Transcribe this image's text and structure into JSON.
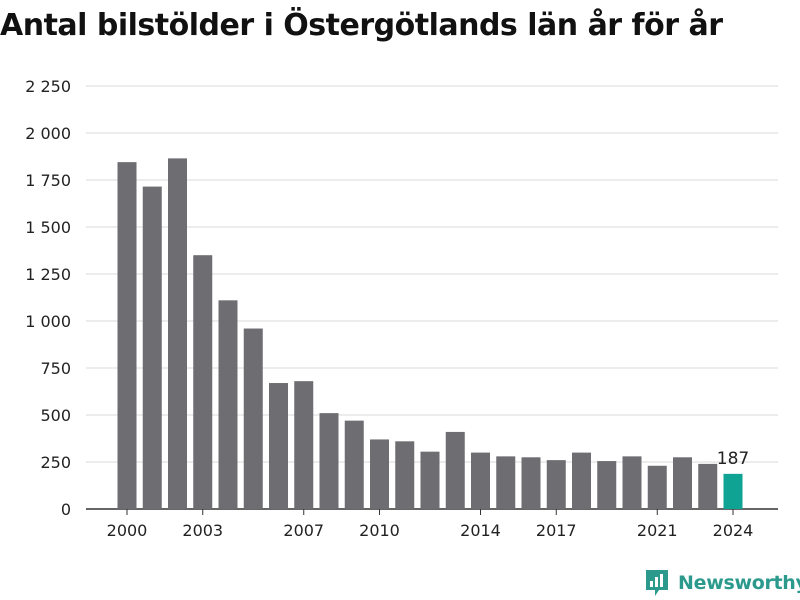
{
  "chart_data": {
    "type": "bar",
    "title": "Antal bilstölder i Östergötlands län år för år",
    "categories": [
      2000,
      2001,
      2002,
      2003,
      2004,
      2005,
      2006,
      2007,
      2008,
      2009,
      2010,
      2011,
      2012,
      2013,
      2014,
      2015,
      2016,
      2017,
      2018,
      2019,
      2020,
      2021,
      2022,
      2023,
      2024
    ],
    "values": [
      1845,
      1715,
      1865,
      1350,
      1110,
      960,
      670,
      680,
      510,
      470,
      370,
      360,
      305,
      410,
      300,
      280,
      275,
      260,
      300,
      255,
      280,
      230,
      275,
      240,
      187
    ],
    "x_tick_labels": [
      "2000",
      "2003",
      "2007",
      "2010",
      "2014",
      "2017",
      "2021",
      "2024"
    ],
    "y_ticks": [
      0,
      250,
      500,
      750,
      1000,
      1250,
      1500,
      1750,
      2000,
      2250
    ],
    "y_tick_labels": [
      "0",
      "250",
      "500",
      "750",
      "1 000",
      "1 250",
      "1 500",
      "1 750",
      "2 000",
      "2 250"
    ],
    "ylim": [
      0,
      2250
    ],
    "grid": true,
    "highlight_category": 2024,
    "highlight_label": "187",
    "colors": {
      "bar": "#6e6d72",
      "highlight": "#0fa394",
      "grid": "#d9d9d9",
      "axis": "#333333"
    }
  },
  "brand": {
    "name": "Newsworthy",
    "color": "#2b9a8d",
    "icon": "newsworthy-logo-icon"
  }
}
